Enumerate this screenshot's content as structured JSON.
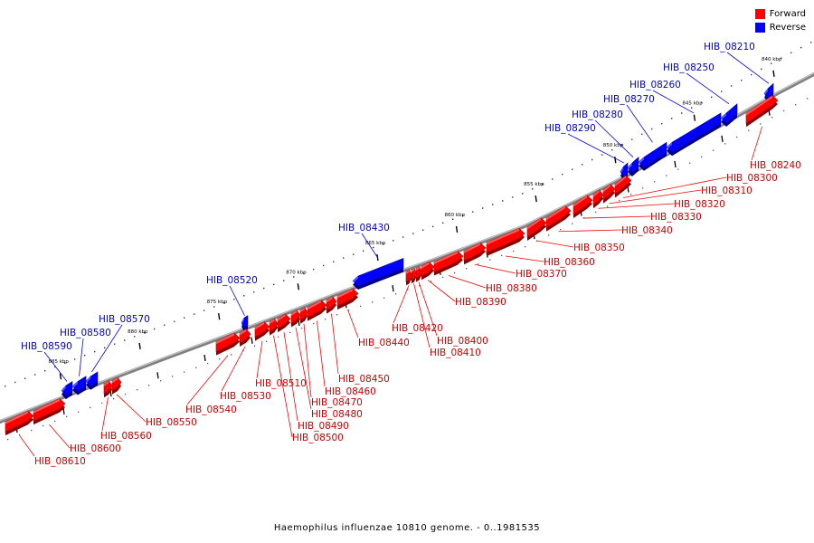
{
  "caption": "Haemophilus influenzae 10810 genome. - 0..1981535",
  "legend": [
    {
      "label": "Forward",
      "color": "#ff0000"
    },
    {
      "label": "Reverse",
      "color": "#0000ff"
    }
  ],
  "colors": {
    "forward": "#ff0000",
    "forward_label": "#cc0000",
    "reverse": "#0000ff",
    "reverse_label": "#0000cc",
    "axis": "#808080"
  },
  "scale_ticks": [
    {
      "label": "840 kbp",
      "kbp": 840
    },
    {
      "label": "845 kbp",
      "kbp": 845
    },
    {
      "label": "850 kbp",
      "kbp": 850
    },
    {
      "label": "855 kbp",
      "kbp": 855
    },
    {
      "label": "860 kbp",
      "kbp": 860
    },
    {
      "label": "865 kbp",
      "kbp": 865
    },
    {
      "label": "870 kbp",
      "kbp": 870
    },
    {
      "label": "875 kbp",
      "kbp": 875
    },
    {
      "label": "880 kbp",
      "kbp": 880
    },
    {
      "label": "885 kbp",
      "kbp": 885
    }
  ],
  "genes": [
    {
      "name": "HIB_08210",
      "strand": "reverse"
    },
    {
      "name": "HIB_08240",
      "strand": "forward"
    },
    {
      "name": "HIB_08250",
      "strand": "reverse"
    },
    {
      "name": "HIB_08260",
      "strand": "reverse"
    },
    {
      "name": "HIB_08270",
      "strand": "reverse"
    },
    {
      "name": "HIB_08280",
      "strand": "reverse"
    },
    {
      "name": "HIB_08290",
      "strand": "reverse"
    },
    {
      "name": "HIB_08300",
      "strand": "forward"
    },
    {
      "name": "HIB_08310",
      "strand": "forward"
    },
    {
      "name": "HIB_08320",
      "strand": "forward"
    },
    {
      "name": "HIB_08330",
      "strand": "forward"
    },
    {
      "name": "HIB_08340",
      "strand": "forward"
    },
    {
      "name": "HIB_08350",
      "strand": "forward"
    },
    {
      "name": "HIB_08360",
      "strand": "forward"
    },
    {
      "name": "HIB_08370",
      "strand": "forward"
    },
    {
      "name": "HIB_08380",
      "strand": "forward"
    },
    {
      "name": "HIB_08390",
      "strand": "forward"
    },
    {
      "name": "HIB_08400",
      "strand": "forward"
    },
    {
      "name": "HIB_08410",
      "strand": "forward"
    },
    {
      "name": "HIB_08420",
      "strand": "forward"
    },
    {
      "name": "HIB_08430",
      "strand": "reverse"
    },
    {
      "name": "HIB_08440",
      "strand": "forward"
    },
    {
      "name": "HIB_08450",
      "strand": "forward"
    },
    {
      "name": "HIB_08460",
      "strand": "forward"
    },
    {
      "name": "HIB_08470",
      "strand": "forward"
    },
    {
      "name": "HIB_08480",
      "strand": "forward"
    },
    {
      "name": "HIB_08490",
      "strand": "forward"
    },
    {
      "name": "HIB_08500",
      "strand": "forward"
    },
    {
      "name": "HIB_08510",
      "strand": "forward"
    },
    {
      "name": "HIB_08520",
      "strand": "reverse"
    },
    {
      "name": "HIB_08530",
      "strand": "forward"
    },
    {
      "name": "HIB_08540",
      "strand": "forward"
    },
    {
      "name": "HIB_08550",
      "strand": "forward"
    },
    {
      "name": "HIB_08560",
      "strand": "forward"
    },
    {
      "name": "HIB_08570",
      "strand": "reverse"
    },
    {
      "name": "HIB_08580",
      "strand": "reverse"
    },
    {
      "name": "HIB_08590",
      "strand": "reverse"
    },
    {
      "name": "HIB_08600",
      "strand": "forward"
    },
    {
      "name": "HIB_08610",
      "strand": "forward"
    }
  ]
}
